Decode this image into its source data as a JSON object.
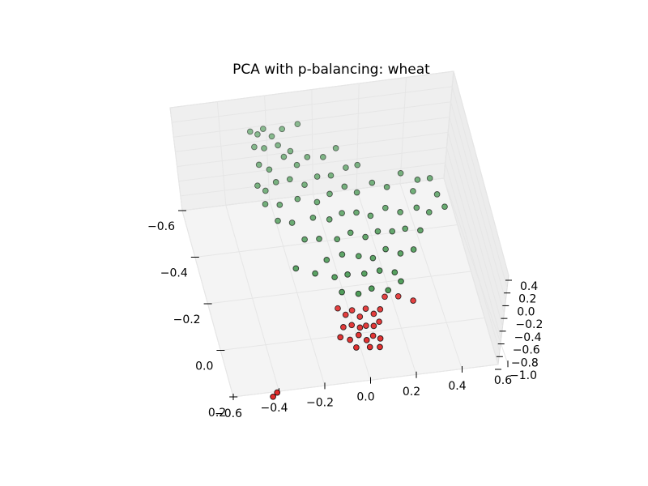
{
  "chart_data": {
    "type": "scatter",
    "projection": "3d",
    "title": "PCA with p-balancing: wheat",
    "x_ticks": [
      "−0.6",
      "−0.4",
      "−0.2",
      "0.0",
      "0.2",
      "0.4",
      "0.6"
    ],
    "y_ticks": [
      "−0.6",
      "−0.4",
      "−0.2",
      "0.0",
      "0.2"
    ],
    "z_ticks": [
      "0.4",
      "0.2",
      "0.0",
      "−0.2",
      "−0.4",
      "−0.6",
      "−0.8",
      "−1.0"
    ],
    "xlim": [
      -0.6,
      0.6
    ],
    "ylim": [
      -0.6,
      0.2
    ],
    "zlim": [
      -1.0,
      0.4
    ],
    "grid": true,
    "colors": {
      "series_a": "#2e8b3a",
      "series_b": "#e02020",
      "edge": "#000000",
      "pane": "#f2f2f2",
      "grid": "#e6e6e6"
    },
    "series": [
      {
        "color": "#2e8b3a",
        "points": [
          [
            -0.36,
            -0.55,
            0.32
          ],
          [
            -0.33,
            -0.54,
            0.3
          ],
          [
            -0.3,
            -0.56,
            0.3
          ],
          [
            -0.27,
            -0.53,
            0.28
          ],
          [
            -0.22,
            -0.55,
            0.3
          ],
          [
            -0.15,
            -0.56,
            0.31
          ],
          [
            -0.35,
            -0.51,
            0.22
          ],
          [
            -0.31,
            -0.5,
            0.22
          ],
          [
            -0.25,
            -0.5,
            0.24
          ],
          [
            -0.2,
            -0.48,
            0.2
          ],
          [
            -0.34,
            -0.46,
            0.12
          ],
          [
            -0.3,
            -0.44,
            0.1
          ],
          [
            -0.23,
            -0.47,
            0.16
          ],
          [
            -0.18,
            -0.44,
            0.12
          ],
          [
            -0.13,
            -0.46,
            0.15
          ],
          [
            -0.06,
            -0.46,
            0.12
          ],
          [
            0.0,
            -0.48,
            0.16
          ],
          [
            -0.36,
            -0.4,
            0.02
          ],
          [
            -0.33,
            -0.38,
            0.0
          ],
          [
            -0.28,
            -0.4,
            0.04
          ],
          [
            -0.22,
            -0.4,
            0.06
          ],
          [
            -0.16,
            -0.38,
            0.02
          ],
          [
            -0.1,
            -0.4,
            0.05
          ],
          [
            -0.04,
            -0.4,
            0.04
          ],
          [
            0.03,
            -0.42,
            0.06
          ],
          [
            0.08,
            -0.42,
            0.08
          ],
          [
            -0.34,
            -0.34,
            -0.06
          ],
          [
            -0.28,
            -0.33,
            -0.06
          ],
          [
            -0.2,
            -0.34,
            -0.04
          ],
          [
            -0.12,
            -0.32,
            -0.05
          ],
          [
            -0.06,
            -0.34,
            -0.02
          ],
          [
            0.01,
            -0.36,
            -0.01
          ],
          [
            0.06,
            -0.34,
            -0.05
          ],
          [
            0.13,
            -0.36,
            0.0
          ],
          [
            0.19,
            -0.34,
            -0.02
          ],
          [
            0.26,
            -0.38,
            0.02
          ],
          [
            0.3,
            -0.32,
            -0.06
          ],
          [
            0.33,
            -0.36,
            -0.04
          ],
          [
            -0.3,
            -0.28,
            -0.12
          ],
          [
            -0.24,
            -0.27,
            -0.14
          ],
          [
            -0.15,
            -0.27,
            -0.1
          ],
          [
            -0.08,
            -0.26,
            -0.12
          ],
          [
            -0.02,
            -0.28,
            -0.12
          ],
          [
            0.04,
            -0.27,
            -0.1
          ],
          [
            0.1,
            -0.26,
            -0.14
          ],
          [
            0.17,
            -0.28,
            -0.12
          ],
          [
            0.23,
            -0.26,
            -0.14
          ],
          [
            0.3,
            -0.26,
            -0.1
          ],
          [
            0.35,
            -0.24,
            -0.12
          ],
          [
            -0.2,
            -0.21,
            -0.2
          ],
          [
            -0.14,
            -0.2,
            -0.18
          ],
          [
            -0.06,
            -0.2,
            -0.22
          ],
          [
            0.0,
            -0.21,
            -0.18
          ],
          [
            0.06,
            -0.19,
            -0.2
          ],
          [
            0.12,
            -0.21,
            -0.21
          ],
          [
            0.18,
            -0.2,
            -0.2
          ],
          [
            0.24,
            -0.21,
            -0.22
          ],
          [
            0.3,
            -0.19,
            -0.2
          ],
          [
            -0.12,
            -0.14,
            -0.3
          ],
          [
            -0.05,
            -0.15,
            -0.28
          ],
          [
            0.02,
            -0.14,
            -0.3
          ],
          [
            0.08,
            -0.13,
            -0.32
          ],
          [
            0.14,
            -0.15,
            -0.28
          ],
          [
            0.2,
            -0.13,
            -0.3
          ],
          [
            0.26,
            -0.14,
            -0.3
          ],
          [
            -0.18,
            -0.1,
            -0.34
          ],
          [
            -0.1,
            -0.08,
            -0.36
          ],
          [
            -0.04,
            -0.09,
            -0.38
          ],
          [
            0.03,
            -0.08,
            -0.36
          ],
          [
            0.1,
            -0.09,
            -0.38
          ],
          [
            0.16,
            -0.07,
            -0.36
          ],
          [
            -0.08,
            -0.03,
            -0.42
          ],
          [
            -0.01,
            -0.02,
            -0.44
          ],
          [
            0.05,
            -0.03,
            -0.42
          ],
          [
            0.12,
            -0.02,
            -0.44
          ],
          [
            0.18,
            -0.04,
            -0.4
          ],
          [
            -0.26,
            -0.12,
            -0.3
          ],
          [
            0.4,
            -0.3,
            -0.08
          ],
          [
            0.42,
            -0.25,
            -0.1
          ],
          [
            0.38,
            -0.35,
            0.0
          ]
        ]
      },
      {
        "color": "#e02020",
        "points": [
          [
            -0.11,
            0.02,
            -0.48
          ],
          [
            -0.08,
            0.04,
            -0.52
          ],
          [
            -0.05,
            0.03,
            -0.5
          ],
          [
            -0.02,
            0.05,
            -0.54
          ],
          [
            0.01,
            0.03,
            -0.5
          ],
          [
            0.04,
            0.05,
            -0.52
          ],
          [
            0.07,
            0.04,
            -0.5
          ],
          [
            -0.1,
            0.08,
            -0.56
          ],
          [
            -0.06,
            0.07,
            -0.58
          ],
          [
            -0.03,
            0.09,
            -0.56
          ],
          [
            0.0,
            0.08,
            -0.58
          ],
          [
            0.03,
            0.09,
            -0.56
          ],
          [
            0.06,
            0.07,
            -0.58
          ],
          [
            -0.12,
            0.11,
            -0.6
          ],
          [
            -0.08,
            0.12,
            -0.62
          ],
          [
            -0.04,
            0.11,
            -0.6
          ],
          [
            -0.01,
            0.13,
            -0.62
          ],
          [
            0.02,
            0.12,
            -0.6
          ],
          [
            0.05,
            0.13,
            -0.62
          ],
          [
            -0.06,
            0.15,
            -0.64
          ],
          [
            0.0,
            0.15,
            -0.66
          ],
          [
            0.04,
            0.16,
            -0.64
          ],
          [
            0.1,
            0.0,
            -0.46
          ],
          [
            0.16,
            0.0,
            -0.48
          ],
          [
            0.22,
            0.02,
            -0.5
          ],
          [
            -0.44,
            0.24,
            -0.92
          ],
          [
            -0.42,
            0.23,
            -0.9
          ]
        ]
      }
    ]
  }
}
